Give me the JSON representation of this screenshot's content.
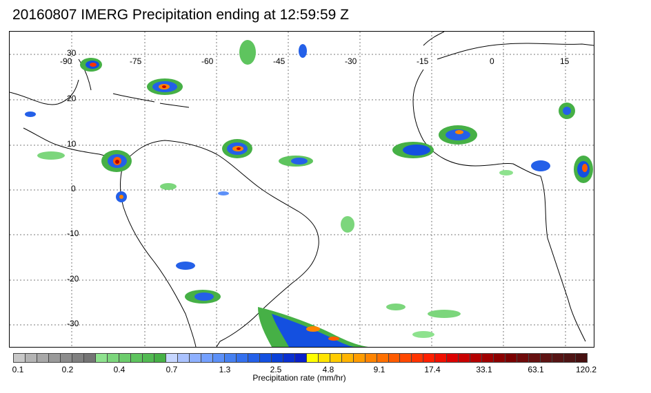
{
  "title": "20160807 IMERG Precipitation ending at 12:59:59 Z",
  "map": {
    "lon_labels": [
      "-90",
      "-75",
      "-60",
      "-45",
      "-30",
      "-15",
      "0",
      "15"
    ],
    "lat_labels": [
      "30",
      "20",
      "10",
      "0",
      "-10",
      "-20",
      "-30"
    ]
  },
  "colorbar": {
    "title": "Precipitation rate (mm/hr)",
    "tick_labels": [
      "0.1",
      "0.2",
      "0.4",
      "0.7",
      "1.3",
      "2.5",
      "4.8",
      "9.1",
      "17.4",
      "33.1",
      "63.1",
      "120.2"
    ],
    "colors": [
      "#c8c8c8",
      "#b4b4b4",
      "#a8a8a8",
      "#9a9a9a",
      "#8c8c8c",
      "#808080",
      "#747474",
      "#8ee28e",
      "#7cd67c",
      "#6ccc6c",
      "#5ec45e",
      "#52ba52",
      "#46b046",
      "#c6d6ff",
      "#aac2ff",
      "#8eb0ff",
      "#74a0ff",
      "#5c90f8",
      "#4680f0",
      "#3470ee",
      "#2460e8",
      "#1450e0",
      "#0a40d8",
      "#0a30d0",
      "#0a20c8",
      "#ffff00",
      "#ffe400",
      "#ffcc00",
      "#ffb400",
      "#ff9c00",
      "#ff8400",
      "#ff7000",
      "#ff5c00",
      "#ff4800",
      "#ff3400",
      "#ff2000",
      "#f01000",
      "#dc0000",
      "#c80000",
      "#b40000",
      "#a00000",
      "#8c0000",
      "#7a0000",
      "#6e0a0a",
      "#661010",
      "#5e1414",
      "#561414",
      "#4e1414",
      "#461010"
    ]
  }
}
